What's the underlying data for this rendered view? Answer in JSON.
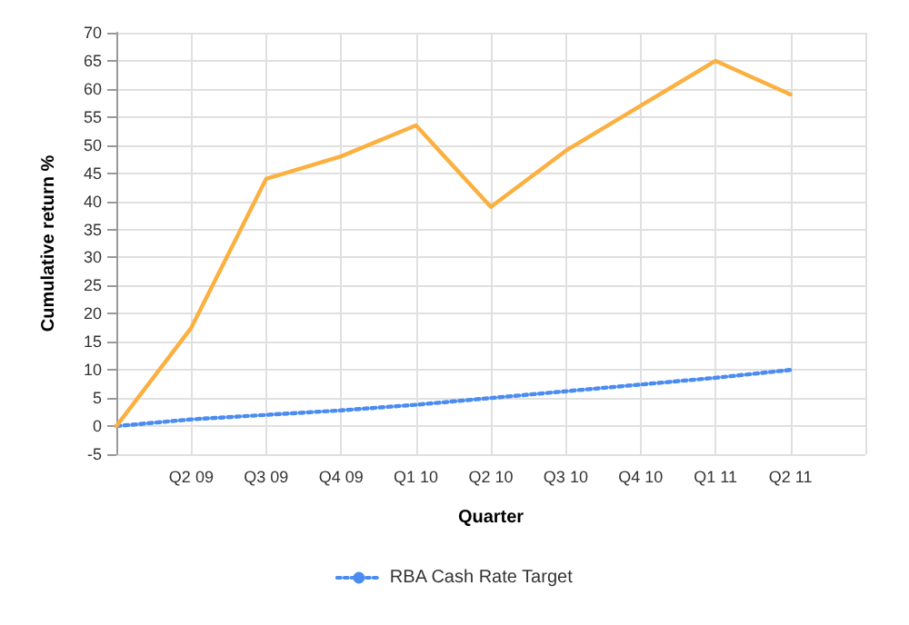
{
  "chart_data": {
    "type": "line",
    "xlabel": "Quarter",
    "ylabel": "Cumulative return %",
    "categories": [
      null,
      "Q2 09",
      "Q3 09",
      "Q4 09",
      "Q1 10",
      "Q2 10",
      "Q3 10",
      "Q4 10",
      "Q1 11",
      "Q2 11",
      null
    ],
    "series": [
      {
        "name": "RBA Cash Rate Target",
        "color": "#4a8cf0",
        "line_style": "dotted",
        "values": [
          0,
          1.2,
          2,
          2.8,
          3.8,
          5,
          6.2,
          7.4,
          8.6,
          10,
          null
        ]
      },
      {
        "color": "#fbb040",
        "line_style": "solid",
        "values": [
          0,
          17.5,
          44,
          48,
          53.5,
          39,
          49,
          57,
          65,
          59,
          null
        ]
      }
    ],
    "ylim": [
      -5,
      70
    ],
    "yticks": [
      -5,
      0,
      5,
      10,
      15,
      20,
      25,
      30,
      35,
      40,
      45,
      50,
      55,
      60,
      65,
      70
    ],
    "grid": true,
    "legend": "bottom",
    "marker": "none"
  }
}
